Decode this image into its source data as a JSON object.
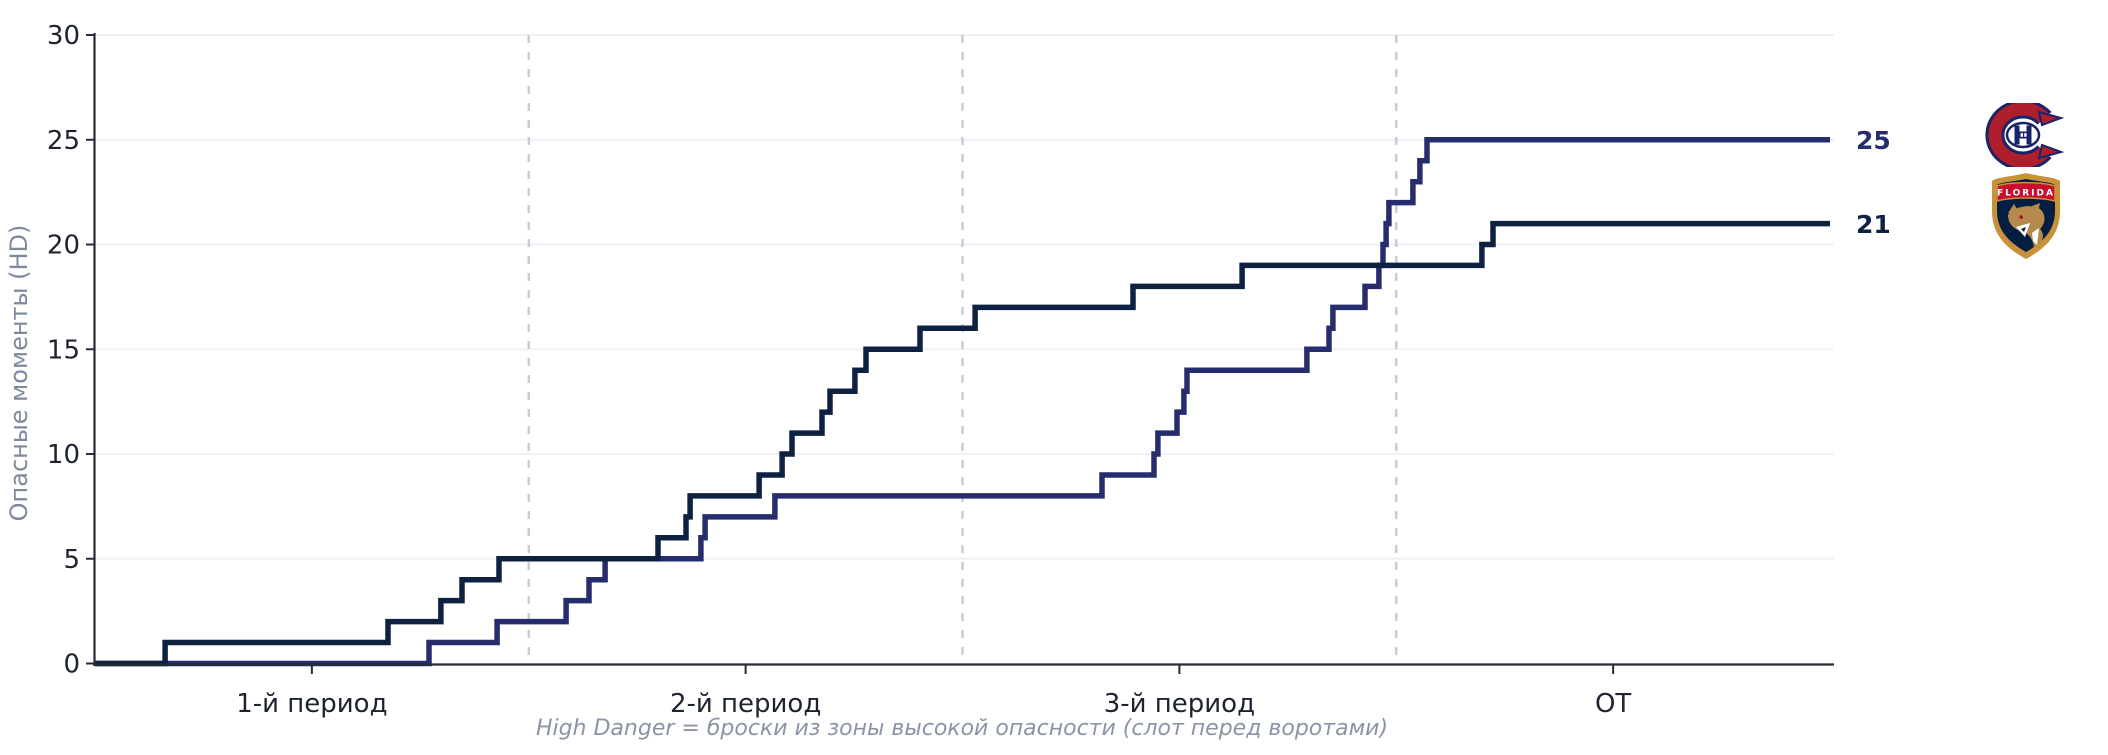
{
  "chart": {
    "y_axis_title": "Опасные моменты (HD)",
    "caption": "High Danger = броски из зоны высокой опасности (слот перед воротами)",
    "y_ticks": [
      "0",
      "5",
      "10",
      "15",
      "20",
      "25",
      "30"
    ],
    "x_ticks": [
      {
        "label": "1-й период",
        "minute": 10
      },
      {
        "label": "2-й период",
        "minute": 30
      },
      {
        "label": "3-й период",
        "minute": 50
      },
      {
        "label": "ОТ",
        "minute": 70
      }
    ],
    "period_boundaries_min": [
      20,
      40,
      60
    ],
    "x_range_min": [
      0,
      80
    ],
    "y_range": [
      0,
      30
    ]
  },
  "colors": {
    "montreal_line": "#262d6d",
    "florida_line": "#0e2140",
    "dashed_guide": "#c4ccd8",
    "gridline": "#f0f1f5",
    "axis": "#262b36",
    "tick_text": "#1e2330",
    "muted_text": "#7f899d",
    "mtl_red": "#af1e2d",
    "mtl_navy": "#1b2368",
    "fla_navy": "#041e42",
    "fla_red": "#c8102e",
    "fla_gold": "#c8913a",
    "fla_tan": "#b58a4d"
  },
  "end_labels": {
    "montreal": "25",
    "florida": "21"
  },
  "logos": {
    "montreal_alt": "Montreal Canadiens logo",
    "florida_alt": "Florida Panthers logo",
    "florida_banner_text": "FLORIDA"
  },
  "chart_data": {
    "type": "line",
    "subtype": "cumulative-step",
    "title": "",
    "xlabel": "",
    "ylabel": "Опасные моменты (HD)",
    "x_unit": "game minute (periods of 20 min, ОТ after 60)",
    "xlim": [
      0,
      80
    ],
    "ylim": [
      0,
      30
    ],
    "grid": "horizontal-light",
    "legend_position": "right-edge-labels-with-team-logos",
    "series": [
      {
        "name": "Montreal Canadiens",
        "color": "#262d6d",
        "final_total": 25,
        "event_minutes": [
          15.4,
          18.54,
          21.72,
          22.78,
          23.52,
          27.94,
          28.13,
          31.35,
          46.43,
          48.83,
          49.01,
          49.89,
          50.21,
          50.35,
          55.88,
          56.9,
          57.08,
          58.56,
          59.2,
          59.39,
          59.53,
          59.66,
          60.77,
          61.09,
          61.42
        ]
      },
      {
        "name": "Florida Panthers",
        "color": "#0e2140",
        "final_total": 21,
        "event_minutes": [
          3.23,
          13.51,
          15.95,
          16.92,
          18.63,
          25.96,
          27.25,
          27.44,
          30.62,
          31.68,
          32.14,
          33.52,
          33.89,
          35.04,
          35.55,
          38.04,
          40.58,
          47.86,
          52.89,
          63.95,
          64.46
        ]
      }
    ]
  }
}
